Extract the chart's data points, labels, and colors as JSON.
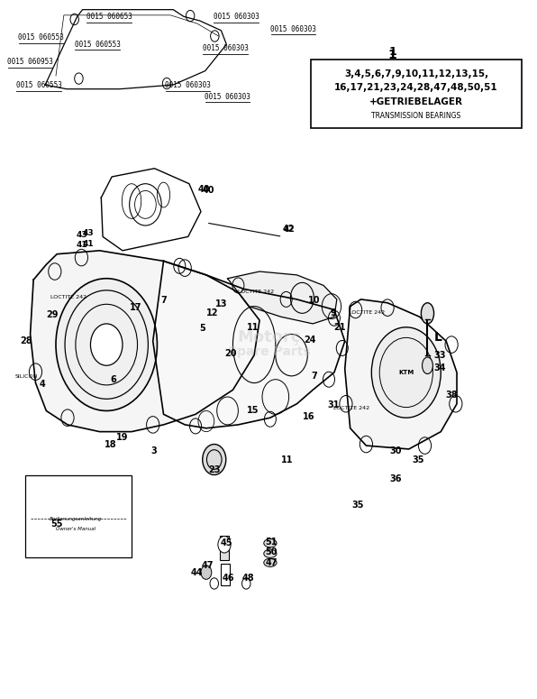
{
  "fig_width": 5.96,
  "fig_height": 7.75,
  "dpi": 100,
  "bg_color": "#ffffff",
  "box_text_line1": "3,4,5,6,7,9,10,11,12,13,15,",
  "box_text_line2": "16,17,21,23,24,28,47,48,50,51",
  "box_text_line3": "+GETRIEBELAGER",
  "box_text_line4": "TRANSMISSION BEARINGS"
}
